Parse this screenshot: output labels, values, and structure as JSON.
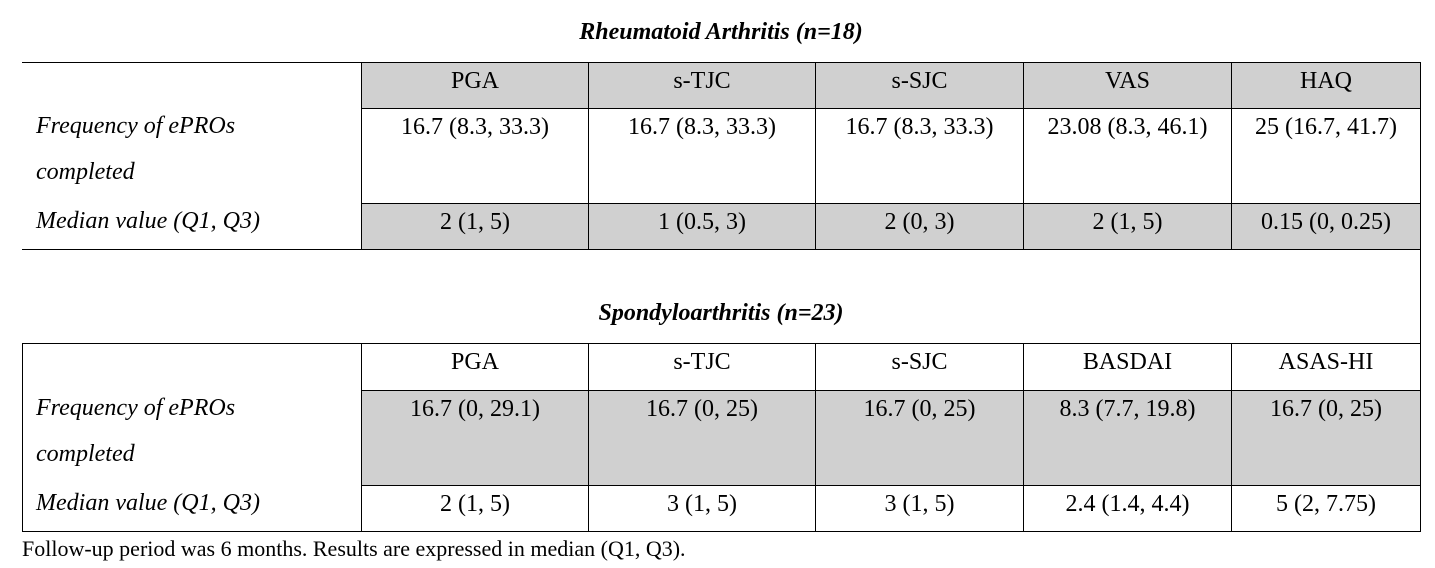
{
  "tables": [
    {
      "title": "Rheumatoid Arthritis (n=18)",
      "columns": [
        "PGA",
        "s-TJC",
        "s-SJC",
        "VAS",
        "HAQ"
      ],
      "rows": [
        {
          "label": "Frequency of ePROs completed",
          "cells": [
            "16.7 (8.3, 33.3)",
            "16.7 (8.3, 33.3)",
            "16.7 (8.3, 33.3)",
            "23.08 (8.3, 46.1)",
            "25 (16.7, 41.7)"
          ]
        },
        {
          "label": "Median value (Q1, Q3)",
          "cells": [
            "2 (1, 5)",
            "1 (0.5, 3)",
            "2 (0, 3)",
            "2 (1, 5)",
            "0.15 (0, 0.25)"
          ]
        }
      ]
    },
    {
      "title": "Spondyloarthritis (n=23)",
      "columns": [
        "PGA",
        "s-TJC",
        "s-SJC",
        "BASDAI",
        "ASAS-HI"
      ],
      "rows": [
        {
          "label": "Frequency of ePROs completed",
          "cells": [
            "16.7 (0, 29.1)",
            "16.7 (0, 25)",
            "16.7 (0, 25)",
            "8.3 (7.7, 19.8)",
            "16.7 (0, 25)"
          ]
        },
        {
          "label": "Median value (Q1, Q3)",
          "cells": [
            "2 (1, 5)",
            "3 (1, 5)",
            "3 (1, 5)",
            "2.4 (1.4, 4.4)",
            "5 (2, 7.75)"
          ]
        }
      ]
    }
  ],
  "footnote": "Follow-up period was 6 months. Results are expressed in median (Q1, Q3)."
}
